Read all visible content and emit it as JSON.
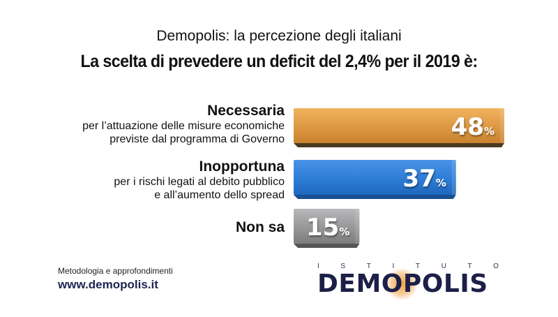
{
  "header": {
    "subtitle": "Demopolis: la percezione degli italiani",
    "title": "La scelta di prevedere un deficit del 2,4% per il 2019 è:"
  },
  "chart_data": {
    "type": "bar",
    "orientation": "horizontal",
    "title": "La scelta di prevedere un deficit del 2,4% per il 2019 è:",
    "subtitle": "Demopolis: la percezione degli italiani",
    "categories": [
      "Necessaria",
      "Inopportuna",
      "Non sa"
    ],
    "descriptions": [
      [
        "per l’attuazione delle misure economiche",
        "previste dal programma di Governo"
      ],
      [
        "per i rischi legati al debito pubblico",
        "e all’aumento dello spread"
      ],
      []
    ],
    "values": [
      48,
      37,
      15
    ],
    "value_suffix": "%",
    "colors": [
      "#e29a45",
      "#2f7fd8",
      "#9a9a9c"
    ],
    "xlim": [
      0,
      48
    ],
    "grid": false
  },
  "footer": {
    "note": "Metodologia e approfondimenti",
    "url": "www.demopolis.it"
  },
  "logo": {
    "top_letters": [
      "I",
      "S",
      "T",
      "I",
      "T",
      "U",
      "T",
      "O"
    ],
    "name": "DEMOPOLIS",
    "accent": "#f0a449",
    "color": "#1c2048"
  }
}
